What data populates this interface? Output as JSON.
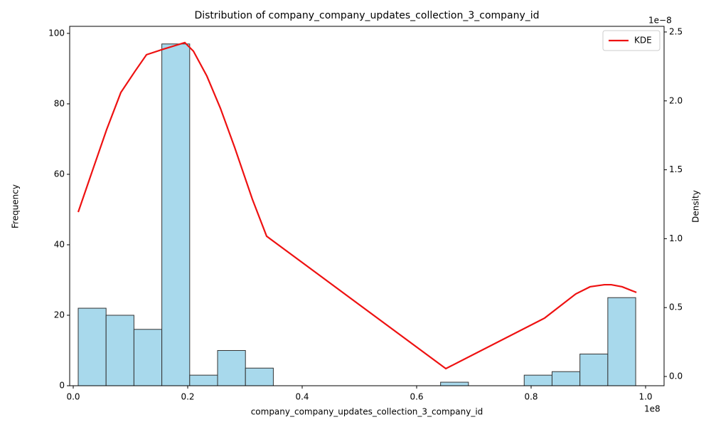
{
  "chart_data": {
    "type": "histogram",
    "title": "Distribution of company_company_updates_collection_3_company_id",
    "x_label": "company_company_updates_collection_3_company_id",
    "y_label": "Frequency",
    "y2_label": "Density",
    "x_offset": "1e8",
    "y2_offset": "1e−8",
    "bins": [
      0.0087,
      0.0574,
      0.1061,
      0.1548,
      0.2035,
      0.2522,
      0.3009,
      0.3496,
      0.3983,
      0.447,
      0.4957,
      0.5444,
      0.5931,
      0.6418,
      0.6905,
      0.7392,
      0.7879,
      0.8366,
      0.8853,
      0.934,
      0.9827
    ],
    "values": [
      22,
      20,
      16,
      97,
      3,
      10,
      5,
      0,
      0,
      0,
      0,
      0,
      0,
      1,
      0,
      0,
      3,
      4,
      9,
      25
    ],
    "color": "#a8d9ec",
    "edge_color": "#333333",
    "series": [
      {
        "name": "KDE",
        "color": "#ee1111",
        "axis": "y2",
        "x": [
          0.0087,
          0.0335,
          0.0584,
          0.0832,
          0.1081,
          0.128,
          0.158,
          0.195,
          0.21,
          0.2335,
          0.2571,
          0.282,
          0.313,
          0.3379,
          0.651,
          0.8236,
          0.878,
          0.903,
          0.928,
          0.94,
          0.959,
          0.984
        ],
        "values": [
          1.193,
          1.493,
          1.792,
          2.061,
          2.216,
          2.335,
          2.376,
          2.423,
          2.361,
          2.18,
          1.947,
          1.663,
          1.286,
          1.018,
          0.057,
          0.424,
          0.599,
          0.651,
          0.666,
          0.666,
          0.651,
          0.61
        ]
      }
    ],
    "xlim": [
      -0.0062,
      1.0323
    ],
    "ylim": [
      0,
      102
    ],
    "y2lim": [
      -0.067,
      2.541
    ],
    "xticks": [
      {
        "value": 0,
        "label": "0.0"
      },
      0.2,
      0.4,
      0.6,
      0.8,
      {
        "value": 1,
        "label": "1.0"
      }
    ],
    "yticks": [
      0,
      20,
      40,
      60,
      80,
      100
    ],
    "y2ticks": [
      {
        "value": 0,
        "label": "0.0"
      },
      0.5,
      {
        "value": 1,
        "label": "1.0"
      },
      1.5,
      {
        "value": 2,
        "label": "2.0"
      },
      2.5
    ],
    "legend": "upper right"
  }
}
